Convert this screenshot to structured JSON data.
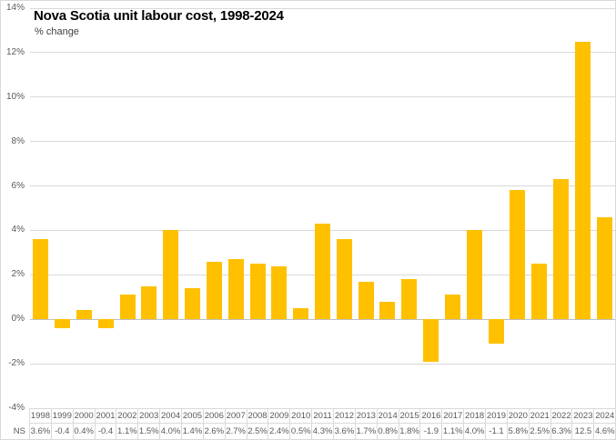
{
  "chart_data": {
    "type": "bar",
    "title": "Nova Scotia unit labour cost, 1998-2024",
    "subtitle": "% change",
    "categories": [
      "1998",
      "1999",
      "2000",
      "2001",
      "2002",
      "2003",
      "2004",
      "2005",
      "2006",
      "2007",
      "2008",
      "2009",
      "2010",
      "2011",
      "2012",
      "2013",
      "2014",
      "2015",
      "2016",
      "2017",
      "2018",
      "2019",
      "2020",
      "2021",
      "2022",
      "2023",
      "2024"
    ],
    "series": [
      {
        "name": "NS",
        "values": [
          3.6,
          -0.4,
          0.4,
          -0.4,
          1.1,
          1.5,
          4.0,
          1.4,
          2.6,
          2.7,
          2.5,
          2.4,
          0.5,
          4.3,
          3.6,
          1.7,
          0.8,
          1.8,
          -1.9,
          1.1,
          4.0,
          -1.1,
          5.8,
          2.5,
          6.3,
          12.5,
          4.6
        ],
        "display_labels": [
          "3.6%",
          "-0.4",
          "0.4%",
          "-0.4",
          "1.1%",
          "1.5%",
          "4.0%",
          "1.4%",
          "2.6%",
          "2.7%",
          "2.5%",
          "2.4%",
          "0.5%",
          "4.3%",
          "3.6%",
          "1.7%",
          "0.8%",
          "1.8%",
          "-1.9",
          "1.1%",
          "4.0%",
          "-1.1",
          "5.8%",
          "2.5%",
          "6.3%",
          "12.5",
          "4.6%"
        ]
      }
    ],
    "xlabel": "",
    "ylabel": "% change",
    "ylim": [
      -4,
      14
    ],
    "yticks": [
      {
        "value": 14,
        "label": "14%"
      },
      {
        "value": 12,
        "label": "12%"
      },
      {
        "value": 10,
        "label": "10%"
      },
      {
        "value": 8,
        "label": "8%"
      },
      {
        "value": 6,
        "label": "6%"
      },
      {
        "value": 4,
        "label": "4%"
      },
      {
        "value": 2,
        "label": "2%"
      },
      {
        "value": 0,
        "label": "0%"
      },
      {
        "value": -2,
        "label": "-2%"
      },
      {
        "value": -4,
        "label": "-4%"
      }
    ],
    "grid": true,
    "legend_position": "none",
    "data_table_shown": true,
    "colors": {
      "bar": "#ffc000",
      "gridline": "#d9d9d9",
      "zero_line": "#bfbfbf",
      "axis_text": "#595959",
      "title_text": "#000000",
      "subtitle_text": "#404040",
      "chart_border": "#d9d9d9",
      "table_line": "#d9d9d9"
    }
  }
}
